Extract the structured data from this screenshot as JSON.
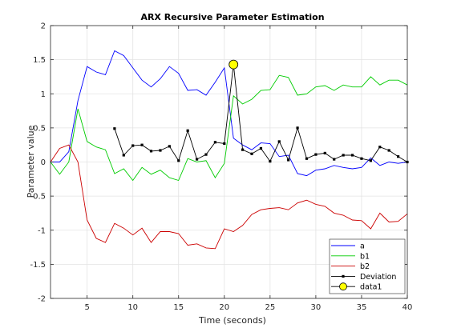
{
  "chart_data": {
    "type": "line",
    "title": "ARX Recursive Parameter Estimation",
    "xlabel": "Time (seconds)",
    "ylabel": "Parameter value",
    "xlim": [
      1,
      40
    ],
    "ylim": [
      -2,
      2
    ],
    "xticks": [
      5,
      10,
      15,
      20,
      25,
      30,
      35,
      40
    ],
    "yticks": [
      -2,
      -1.5,
      -1,
      -0.5,
      0,
      0.5,
      1,
      1.5,
      2
    ],
    "grid": true,
    "legend_position": "bottom-right",
    "series": [
      {
        "name": "a",
        "color": "#0000ff",
        "marker": "none",
        "x": [
          1,
          2,
          3,
          4,
          5,
          6,
          7,
          8,
          9,
          10,
          11,
          12,
          13,
          14,
          15,
          16,
          17,
          18,
          19,
          20,
          21,
          22,
          23,
          24,
          25,
          26,
          27,
          28,
          29,
          30,
          31,
          32,
          33,
          34,
          35,
          36,
          37,
          38,
          39,
          40
        ],
        "y": [
          0.0,
          0.0,
          0.15,
          0.9,
          1.4,
          1.32,
          1.28,
          1.63,
          1.56,
          1.38,
          1.2,
          1.1,
          1.22,
          1.4,
          1.3,
          1.05,
          1.06,
          0.98,
          1.17,
          1.38,
          0.35,
          0.25,
          0.18,
          0.28,
          0.27,
          0.08,
          0.1,
          -0.17,
          -0.2,
          -0.12,
          -0.1,
          -0.05,
          -0.08,
          -0.1,
          -0.08,
          0.06,
          -0.05,
          0.0,
          -0.02,
          0.0
        ]
      },
      {
        "name": "b1",
        "color": "#00cc00",
        "marker": "none",
        "x": [
          1,
          2,
          3,
          4,
          5,
          6,
          7,
          8,
          9,
          10,
          11,
          12,
          13,
          14,
          15,
          16,
          17,
          18,
          19,
          20,
          21,
          22,
          23,
          24,
          25,
          26,
          27,
          28,
          29,
          30,
          31,
          32,
          33,
          34,
          35,
          36,
          37,
          38,
          39,
          40
        ],
        "y": [
          0.0,
          -0.18,
          0.0,
          0.78,
          0.3,
          0.22,
          0.18,
          -0.17,
          -0.1,
          -0.27,
          -0.08,
          -0.18,
          -0.12,
          -0.23,
          -0.27,
          0.05,
          0.0,
          0.02,
          -0.23,
          -0.02,
          0.97,
          0.85,
          0.92,
          1.05,
          1.06,
          1.27,
          1.24,
          0.98,
          1.0,
          1.1,
          1.12,
          1.05,
          1.13,
          1.1,
          1.1,
          1.25,
          1.13,
          1.2,
          1.2,
          1.13
        ]
      },
      {
        "name": "b2",
        "color": "#cc0000",
        "marker": "none",
        "x": [
          1,
          2,
          3,
          4,
          5,
          6,
          7,
          8,
          9,
          10,
          11,
          12,
          13,
          14,
          15,
          16,
          17,
          18,
          19,
          20,
          21,
          22,
          23,
          24,
          25,
          26,
          27,
          28,
          29,
          30,
          31,
          32,
          33,
          34,
          35,
          36,
          37,
          38,
          39,
          40
        ],
        "y": [
          0.0,
          0.2,
          0.25,
          0.0,
          -0.85,
          -1.12,
          -1.18,
          -0.9,
          -0.97,
          -1.07,
          -0.97,
          -1.18,
          -1.02,
          -1.02,
          -1.05,
          -1.22,
          -1.2,
          -1.26,
          -1.27,
          -0.98,
          -1.02,
          -0.93,
          -0.77,
          -0.7,
          -0.68,
          -0.67,
          -0.7,
          -0.6,
          -0.56,
          -0.62,
          -0.65,
          -0.75,
          -0.78,
          -0.85,
          -0.86,
          -0.98,
          -0.75,
          -0.88,
          -0.87,
          -0.76
        ]
      },
      {
        "name": "Deviation",
        "color": "#000000",
        "marker": "square",
        "x": [
          8,
          9,
          10,
          11,
          12,
          13,
          14,
          15,
          16,
          17,
          18,
          19,
          20,
          21,
          22,
          23,
          24,
          25,
          26,
          27,
          28,
          29,
          30,
          31,
          32,
          33,
          34,
          35,
          36,
          37,
          38,
          39,
          40
        ],
        "y": [
          0.49,
          0.1,
          0.24,
          0.25,
          0.16,
          0.17,
          0.23,
          0.02,
          0.46,
          0.04,
          0.11,
          0.29,
          0.27,
          1.43,
          0.18,
          0.12,
          0.2,
          0.01,
          0.3,
          0.03,
          0.5,
          0.05,
          0.11,
          0.13,
          0.04,
          0.1,
          0.1,
          0.05,
          0.02,
          0.22,
          0.17,
          0.08,
          0.0
        ]
      },
      {
        "name": "data1",
        "color": "#000000",
        "marker": "circle",
        "marker_fill": "#ffff00",
        "x": [
          21
        ],
        "y": [
          1.43
        ]
      }
    ]
  }
}
